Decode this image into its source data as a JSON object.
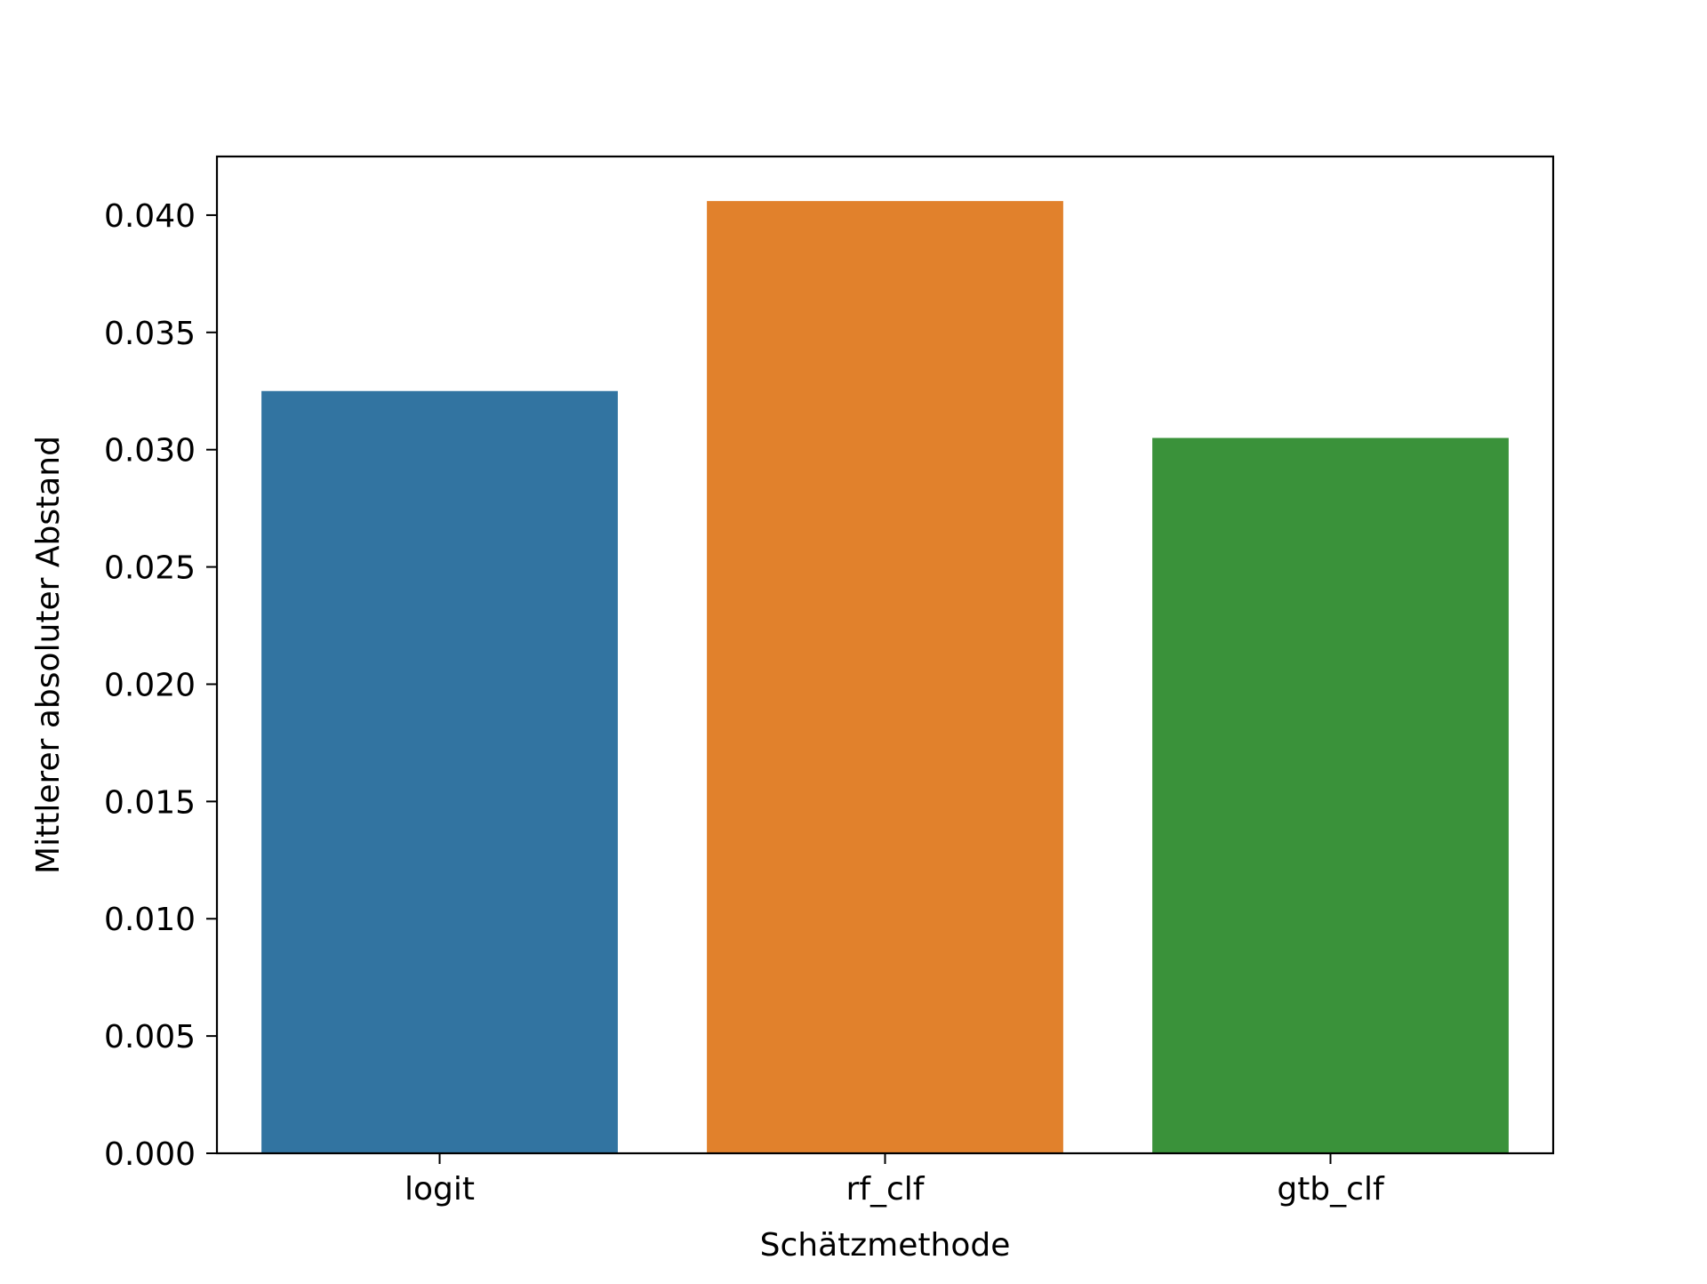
{
  "chart_data": {
    "type": "bar",
    "title": "",
    "xlabel": "Schätzmethode",
    "ylabel": "Mittlerer absoluter Abstand",
    "categories": [
      "logit",
      "rf_clf",
      "gtb_clf"
    ],
    "values": [
      0.0325,
      0.0406,
      0.0305
    ],
    "colors": [
      "#3274a1",
      "#e1812c",
      "#3a923a"
    ],
    "ylim": [
      0,
      0.0425
    ],
    "yticks": [
      0.0,
      0.005,
      0.01,
      0.015,
      0.02,
      0.025,
      0.03,
      0.035,
      0.04
    ],
    "ytick_labels": [
      "0.000",
      "0.005",
      "0.010",
      "0.015",
      "0.020",
      "0.025",
      "0.030",
      "0.035",
      "0.040"
    ],
    "grid": false,
    "legend": "none"
  }
}
